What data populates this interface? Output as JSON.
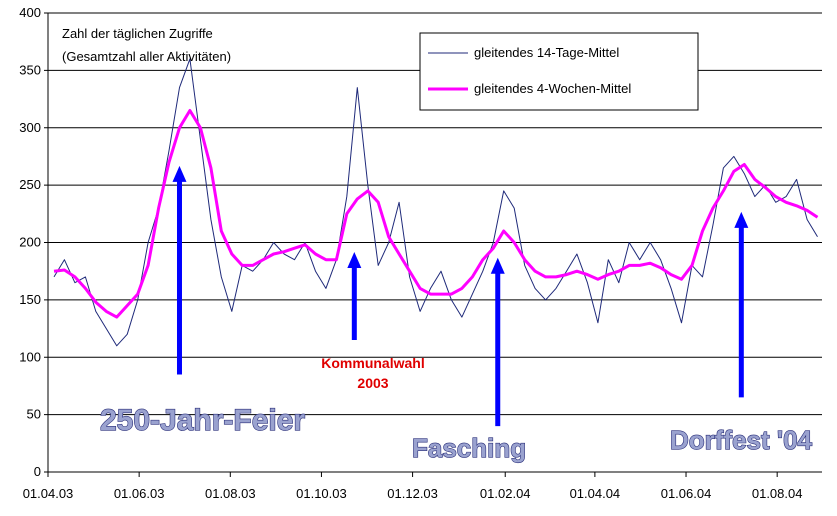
{
  "chart_data": {
    "type": "line",
    "title": "Zahl der täglichen Zugriffe",
    "subtitle": "(Gesamtzahl aller Aktivitäten)",
    "xlabel": "",
    "ylabel": "",
    "ylim": [
      0,
      400
    ],
    "yticks": [
      "0",
      "50",
      "100",
      "150",
      "200",
      "250",
      "300",
      "350",
      "400"
    ],
    "xticks": [
      "01.04.03",
      "01.06.03",
      "01.08.03",
      "01.10.03",
      "01.12.03",
      "01.02.04",
      "01.04.04",
      "01.06.04",
      "01.08.04"
    ],
    "xlim": [
      "2003-04-01",
      "2004-08-31"
    ],
    "grid": "horizontal",
    "legend_position": "top-right",
    "series": [
      {
        "name": "gleitendes 14-Tage-Mittel",
        "color": "#1f2a7a",
        "style": "thin",
        "x": [
          "2003-04-05",
          "2003-04-12",
          "2003-04-19",
          "2003-04-26",
          "2003-05-03",
          "2003-05-10",
          "2003-05-17",
          "2003-05-24",
          "2003-05-31",
          "2003-06-07",
          "2003-06-14",
          "2003-06-21",
          "2003-06-28",
          "2003-07-05",
          "2003-07-12",
          "2003-07-19",
          "2003-07-26",
          "2003-08-02",
          "2003-08-09",
          "2003-08-16",
          "2003-08-23",
          "2003-08-30",
          "2003-09-06",
          "2003-09-13",
          "2003-09-20",
          "2003-09-27",
          "2003-10-04",
          "2003-10-11",
          "2003-10-18",
          "2003-10-25",
          "2003-11-01",
          "2003-11-08",
          "2003-11-15",
          "2003-11-22",
          "2003-11-29",
          "2003-12-06",
          "2003-12-13",
          "2003-12-20",
          "2003-12-27",
          "2004-01-03",
          "2004-01-10",
          "2004-01-17",
          "2004-01-24",
          "2004-01-31",
          "2004-02-07",
          "2004-02-14",
          "2004-02-21",
          "2004-02-28",
          "2004-03-06",
          "2004-03-13",
          "2004-03-20",
          "2004-03-27",
          "2004-04-03",
          "2004-04-10",
          "2004-04-17",
          "2004-04-24",
          "2004-05-01",
          "2004-05-08",
          "2004-05-15",
          "2004-05-22",
          "2004-05-29",
          "2004-06-05",
          "2004-06-12",
          "2004-06-19",
          "2004-06-26",
          "2004-07-03",
          "2004-07-10",
          "2004-07-17",
          "2004-07-24",
          "2004-07-31",
          "2004-08-07",
          "2004-08-14",
          "2004-08-21",
          "2004-08-28"
        ],
        "values": [
          170,
          185,
          165,
          170,
          140,
          125,
          110,
          120,
          150,
          200,
          230,
          280,
          335,
          360,
          290,
          220,
          170,
          140,
          180,
          175,
          185,
          200,
          190,
          185,
          200,
          175,
          160,
          185,
          240,
          335,
          250,
          180,
          200,
          235,
          170,
          140,
          160,
          175,
          150,
          135,
          155,
          175,
          200,
          245,
          230,
          180,
          160,
          150,
          160,
          175,
          190,
          165,
          130,
          185,
          165,
          200,
          185,
          200,
          185,
          160,
          130,
          180,
          170,
          215,
          265,
          275,
          260,
          240,
          250,
          235,
          240,
          255,
          220,
          205
        ]
      },
      {
        "name": "gleitendes 4-Wochen-Mittel",
        "color": "#ff00ff",
        "style": "thick",
        "x": [
          "2003-04-05",
          "2003-04-12",
          "2003-04-19",
          "2003-04-26",
          "2003-05-03",
          "2003-05-10",
          "2003-05-17",
          "2003-05-24",
          "2003-05-31",
          "2003-06-07",
          "2003-06-14",
          "2003-06-21",
          "2003-06-28",
          "2003-07-05",
          "2003-07-12",
          "2003-07-19",
          "2003-07-26",
          "2003-08-02",
          "2003-08-09",
          "2003-08-16",
          "2003-08-23",
          "2003-08-30",
          "2003-09-06",
          "2003-09-13",
          "2003-09-20",
          "2003-09-27",
          "2003-10-04",
          "2003-10-11",
          "2003-10-18",
          "2003-10-25",
          "2003-11-01",
          "2003-11-08",
          "2003-11-15",
          "2003-11-22",
          "2003-11-29",
          "2003-12-06",
          "2003-12-13",
          "2003-12-20",
          "2003-12-27",
          "2004-01-03",
          "2004-01-10",
          "2004-01-17",
          "2004-01-24",
          "2004-01-31",
          "2004-02-07",
          "2004-02-14",
          "2004-02-21",
          "2004-02-28",
          "2004-03-06",
          "2004-03-13",
          "2004-03-20",
          "2004-03-27",
          "2004-04-03",
          "2004-04-10",
          "2004-04-17",
          "2004-04-24",
          "2004-05-01",
          "2004-05-08",
          "2004-05-15",
          "2004-05-22",
          "2004-05-29",
          "2004-06-05",
          "2004-06-12",
          "2004-06-19",
          "2004-06-26",
          "2004-07-03",
          "2004-07-10",
          "2004-07-17",
          "2004-07-24",
          "2004-07-31",
          "2004-08-07",
          "2004-08-14",
          "2004-08-21",
          "2004-08-28"
        ],
        "values": [
          175,
          176,
          170,
          160,
          148,
          140,
          135,
          145,
          155,
          180,
          230,
          270,
          300,
          315,
          300,
          265,
          210,
          190,
          180,
          180,
          185,
          190,
          192,
          195,
          198,
          190,
          185,
          185,
          225,
          238,
          245,
          235,
          205,
          190,
          175,
          160,
          155,
          155,
          155,
          160,
          170,
          185,
          195,
          210,
          200,
          185,
          175,
          170,
          170,
          172,
          175,
          172,
          168,
          172,
          175,
          180,
          180,
          182,
          178,
          172,
          168,
          180,
          210,
          230,
          245,
          262,
          268,
          255,
          248,
          240,
          235,
          232,
          228,
          222
        ]
      }
    ],
    "annotations": [
      {
        "label": "250-Jahr-Feier",
        "date": "2003-06-28",
        "arrow_from": 85,
        "arrow_to": 265
      },
      {
        "label": "Kommunalwahl",
        "label2": "2003",
        "date": "2003-10-23",
        "arrow_from": 115,
        "arrow_to": 190
      },
      {
        "label": "Fasching",
        "date": "2004-01-27",
        "arrow_from": 40,
        "arrow_to": 185
      },
      {
        "label": "Dorffest '04",
        "date": "2004-07-08",
        "arrow_from": 65,
        "arrow_to": 225
      }
    ]
  }
}
